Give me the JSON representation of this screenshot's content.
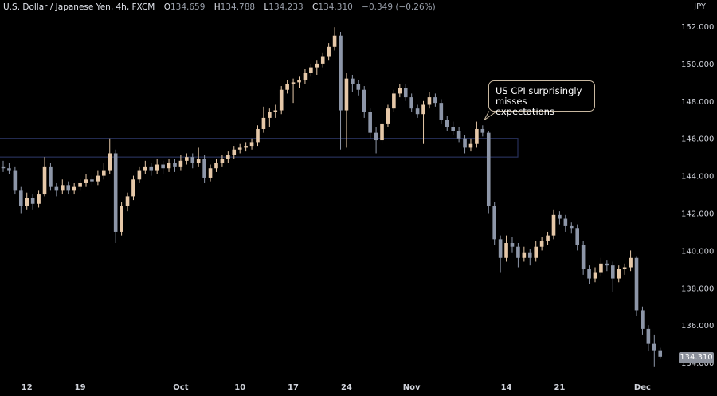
{
  "header": {
    "symbol": "U.S. Dollar / Japanese Yen, 4h, FXCM",
    "o_label": "O",
    "o_value": "134.659",
    "h_label": "H",
    "h_value": "134.788",
    "l_label": "L",
    "l_value": "134.233",
    "c_label": "C",
    "c_value": "134.310",
    "change": "−0.349 (−0.26%)"
  },
  "currency": "JPY",
  "annotation": {
    "line1": "US CPI surprisingly",
    "line2": "misses expectations"
  },
  "last_price": "134.310",
  "colors": {
    "up": "#e6c8a8",
    "down": "#8d96a8",
    "zone_border": "#27305a",
    "background": "#000000"
  },
  "chart_data": {
    "type": "candlestick",
    "title": "U.S. Dollar / Japanese Yen, 4h, FXCM",
    "ylim": [
      133.2,
      153.4
    ],
    "y_ticks": [
      "152.000",
      "150.000",
      "148.000",
      "146.000",
      "144.000",
      "142.000",
      "140.000",
      "138.000",
      "136.000",
      "134.000"
    ],
    "y_tick_values": [
      152,
      150,
      148,
      146,
      144,
      142,
      140,
      138,
      136,
      134
    ],
    "x_ticks": [
      "12",
      "19",
      "Oct",
      "10",
      "17",
      "24",
      "Nov",
      "14",
      "21",
      "Dec"
    ],
    "x_tick_candle_index": [
      4,
      13,
      30,
      40,
      49,
      58,
      69,
      85,
      94,
      108
    ],
    "grid": false,
    "zone": {
      "low": 145.0,
      "high": 146.0
    },
    "annotation_candle_index": 81,
    "ohlc": [
      [
        144.5,
        144.8,
        144.2,
        144.4
      ],
      [
        144.4,
        144.7,
        144.1,
        144.3
      ],
      [
        144.3,
        144.5,
        143.0,
        143.2
      ],
      [
        143.2,
        143.4,
        142.0,
        142.4
      ],
      [
        142.4,
        143.1,
        142.2,
        142.8
      ],
      [
        142.8,
        143.0,
        142.2,
        142.5
      ],
      [
        142.5,
        143.2,
        142.3,
        143.0
      ],
      [
        143.0,
        145.0,
        142.9,
        144.5
      ],
      [
        144.5,
        144.7,
        143.2,
        143.4
      ],
      [
        143.4,
        143.6,
        142.9,
        143.2
      ],
      [
        143.2,
        143.8,
        143.0,
        143.5
      ],
      [
        143.5,
        143.7,
        143.0,
        143.2
      ],
      [
        143.2,
        143.6,
        143.0,
        143.4
      ],
      [
        143.4,
        143.8,
        143.2,
        143.6
      ],
      [
        143.6,
        144.1,
        143.4,
        143.8
      ],
      [
        143.8,
        144.0,
        143.5,
        143.7
      ],
      [
        143.7,
        144.3,
        143.5,
        144.0
      ],
      [
        144.0,
        144.7,
        143.8,
        144.3
      ],
      [
        144.3,
        146.0,
        144.1,
        145.2
      ],
      [
        145.2,
        145.4,
        140.4,
        141.0
      ],
      [
        141.0,
        142.6,
        140.8,
        142.4
      ],
      [
        142.4,
        143.1,
        142.1,
        142.9
      ],
      [
        142.9,
        144.0,
        142.7,
        143.8
      ],
      [
        143.8,
        144.5,
        143.6,
        144.3
      ],
      [
        144.3,
        144.8,
        144.1,
        144.5
      ],
      [
        144.5,
        144.7,
        144.0,
        144.3
      ],
      [
        144.3,
        144.9,
        144.1,
        144.6
      ],
      [
        144.6,
        144.8,
        144.1,
        144.4
      ],
      [
        144.4,
        144.9,
        144.2,
        144.7
      ],
      [
        144.7,
        144.9,
        144.2,
        144.5
      ],
      [
        144.5,
        145.1,
        144.3,
        144.8
      ],
      [
        144.8,
        145.2,
        144.6,
        145.0
      ],
      [
        145.0,
        145.2,
        144.4,
        144.7
      ],
      [
        144.7,
        145.5,
        144.5,
        144.9
      ],
      [
        144.9,
        145.1,
        143.6,
        143.9
      ],
      [
        143.9,
        144.6,
        143.7,
        144.4
      ],
      [
        144.4,
        144.9,
        144.2,
        144.7
      ],
      [
        144.7,
        145.1,
        144.5,
        144.9
      ],
      [
        144.9,
        145.3,
        144.7,
        145.1
      ],
      [
        145.1,
        145.6,
        144.9,
        145.4
      ],
      [
        145.4,
        145.7,
        145.2,
        145.5
      ],
      [
        145.5,
        145.8,
        145.3,
        145.6
      ],
      [
        145.6,
        146.0,
        145.4,
        145.8
      ],
      [
        145.8,
        146.7,
        145.6,
        146.5
      ],
      [
        146.5,
        147.7,
        146.3,
        147.1
      ],
      [
        147.1,
        147.6,
        146.6,
        147.4
      ],
      [
        147.4,
        147.8,
        147.1,
        147.5
      ],
      [
        147.5,
        148.8,
        147.3,
        148.6
      ],
      [
        148.6,
        149.1,
        148.4,
        148.9
      ],
      [
        148.9,
        149.2,
        147.9,
        149.0
      ],
      [
        149.0,
        149.3,
        148.7,
        149.1
      ],
      [
        149.1,
        149.7,
        148.9,
        149.5
      ],
      [
        149.5,
        150.0,
        149.3,
        149.8
      ],
      [
        149.8,
        150.2,
        149.4,
        150.0
      ],
      [
        150.0,
        150.6,
        149.8,
        150.4
      ],
      [
        150.4,
        151.1,
        150.2,
        150.9
      ],
      [
        150.9,
        151.95,
        150.7,
        151.5
      ],
      [
        151.5,
        151.7,
        145.4,
        147.5
      ],
      [
        147.5,
        149.5,
        145.5,
        149.2
      ],
      [
        149.2,
        149.4,
        148.5,
        148.9
      ],
      [
        148.9,
        149.1,
        148.3,
        148.6
      ],
      [
        148.6,
        148.8,
        147.1,
        147.4
      ],
      [
        147.4,
        147.6,
        146.0,
        146.3
      ],
      [
        146.3,
        146.6,
        145.2,
        145.9
      ],
      [
        145.9,
        147.0,
        145.7,
        146.8
      ],
      [
        146.8,
        147.8,
        146.6,
        147.6
      ],
      [
        147.6,
        148.6,
        147.4,
        148.4
      ],
      [
        148.4,
        148.9,
        148.2,
        148.7
      ],
      [
        148.7,
        148.9,
        148.0,
        148.2
      ],
      [
        148.2,
        148.4,
        147.4,
        147.6
      ],
      [
        147.6,
        147.8,
        147.1,
        147.3
      ],
      [
        147.3,
        148.0,
        145.7,
        147.8
      ],
      [
        147.8,
        148.5,
        147.6,
        148.2
      ],
      [
        148.2,
        148.4,
        147.7,
        147.9
      ],
      [
        147.9,
        148.1,
        146.8,
        147.0
      ],
      [
        147.0,
        147.2,
        146.4,
        146.6
      ],
      [
        146.6,
        146.9,
        146.2,
        146.4
      ],
      [
        146.4,
        146.6,
        145.8,
        146.0
      ],
      [
        146.0,
        146.2,
        145.2,
        145.5
      ],
      [
        145.5,
        146.0,
        145.3,
        145.7
      ],
      [
        145.7,
        146.9,
        145.5,
        146.5
      ],
      [
        146.5,
        146.7,
        146.1,
        146.3
      ],
      [
        146.3,
        146.4,
        142.0,
        142.4
      ],
      [
        142.4,
        142.6,
        140.3,
        140.6
      ],
      [
        140.6,
        140.8,
        138.8,
        139.6
      ],
      [
        139.6,
        140.8,
        139.4,
        140.4
      ],
      [
        140.4,
        140.7,
        139.9,
        140.2
      ],
      [
        140.2,
        140.4,
        139.1,
        139.6
      ],
      [
        139.6,
        140.2,
        139.4,
        139.9
      ],
      [
        139.9,
        140.1,
        139.2,
        139.6
      ],
      [
        139.6,
        140.5,
        139.4,
        140.2
      ],
      [
        140.2,
        140.7,
        140.0,
        140.5
      ],
      [
        140.5,
        141.0,
        140.3,
        140.8
      ],
      [
        140.8,
        142.2,
        140.6,
        141.9
      ],
      [
        141.9,
        142.1,
        141.4,
        141.7
      ],
      [
        141.7,
        141.9,
        141.0,
        141.3
      ],
      [
        141.3,
        141.5,
        140.9,
        141.2
      ],
      [
        141.2,
        141.4,
        140.0,
        140.3
      ],
      [
        140.3,
        140.5,
        138.7,
        139.0
      ],
      [
        139.0,
        139.2,
        138.2,
        138.5
      ],
      [
        138.5,
        139.1,
        138.3,
        138.8
      ],
      [
        138.8,
        139.6,
        138.6,
        139.3
      ],
      [
        139.3,
        139.5,
        138.9,
        139.2
      ],
      [
        139.2,
        139.4,
        137.8,
        138.5
      ],
      [
        138.5,
        139.2,
        138.3,
        139.0
      ],
      [
        139.0,
        139.3,
        138.7,
        139.1
      ],
      [
        139.1,
        140.0,
        138.9,
        139.6
      ],
      [
        139.6,
        139.7,
        136.5,
        136.8
      ],
      [
        136.8,
        137.0,
        135.5,
        135.8
      ],
      [
        135.8,
        136.0,
        134.6,
        135.0
      ],
      [
        135.0,
        135.5,
        133.8,
        134.659
      ],
      [
        134.659,
        134.788,
        134.233,
        134.31
      ]
    ]
  }
}
